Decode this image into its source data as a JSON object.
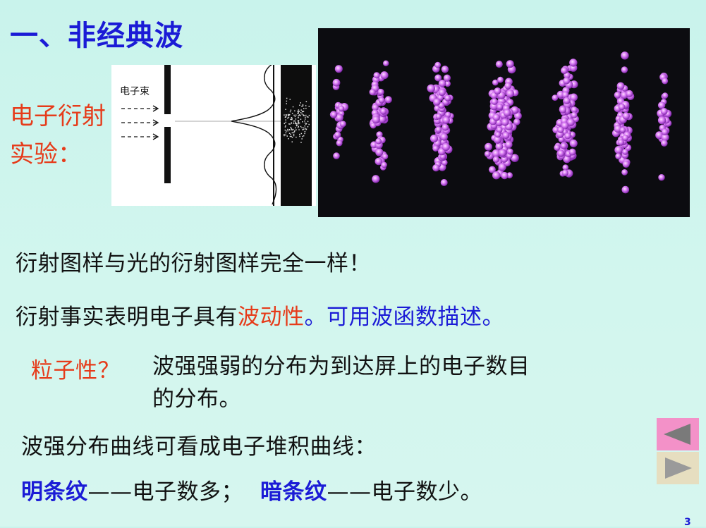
{
  "slide": {
    "title": "一、非经典波",
    "experiment_label": "电子衍射实验：",
    "diagram_beam_label": "电子束",
    "line1": "衍射图样与光的衍射图样完全一样！",
    "line2": {
      "part1": "衍射事实表明电子具有",
      "part2": "波动性",
      "part3": "。可用波函数描述。"
    },
    "line3": {
      "label": "粒子性？",
      "text1": "波强强弱的分布为到达屏上的电子数目",
      "text2": "的分布。"
    },
    "line4": "波强分布曲线可看成电子堆积曲线：",
    "line5": {
      "bright": "明条纹",
      "bright_desc": "——电子数多；",
      "dark": "暗条纹",
      "dark_desc": "——电子数少。"
    },
    "page_number": "3"
  },
  "colors": {
    "title": "#1b1bd6",
    "accent_red": "#e63b1a",
    "nav_prev": "#f391c8",
    "nav_next": "#e6dec0"
  },
  "nav": {
    "prev_icon": "triangle-left-icon",
    "next_icon": "triangle-right-icon"
  }
}
